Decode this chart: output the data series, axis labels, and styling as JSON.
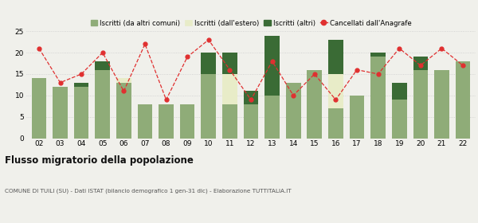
{
  "years": [
    "02",
    "03",
    "04",
    "05",
    "06",
    "07",
    "08",
    "09",
    "10",
    "11",
    "12",
    "13",
    "14",
    "15",
    "16",
    "17",
    "18",
    "19",
    "20",
    "21",
    "22"
  ],
  "iscritti_comuni": [
    14,
    12,
    12,
    16,
    13,
    8,
    8,
    8,
    15,
    8,
    8,
    10,
    13,
    16,
    7,
    10,
    19,
    9,
    16,
    16,
    18
  ],
  "iscritti_estero": [
    0,
    0,
    0,
    0,
    1,
    0,
    0,
    0,
    0,
    7,
    0,
    0,
    0,
    0,
    8,
    0,
    0,
    0,
    0,
    0,
    0
  ],
  "iscritti_altri": [
    0,
    0,
    1,
    2,
    0,
    0,
    0,
    0,
    5,
    5,
    3,
    14,
    0,
    0,
    8,
    0,
    1,
    4,
    3,
    0,
    0
  ],
  "cancellati": [
    21,
    13,
    15,
    20,
    11,
    22,
    9,
    19,
    23,
    16,
    9,
    18,
    10,
    15,
    9,
    16,
    15,
    21,
    17,
    21,
    17
  ],
  "color_comuni": "#8fac78",
  "color_estero": "#e8ecc8",
  "color_altri": "#3a6b35",
  "color_cancellati": "#e03030",
  "color_grid": "#cccccc",
  "ylim": [
    0,
    25
  ],
  "yticks": [
    0,
    5,
    10,
    15,
    20,
    25
  ],
  "title": "Flusso migratorio della popolazione",
  "subtitle": "COMUNE DI TUILI (SU) - Dati ISTAT (bilancio demografico 1 gen-31 dic) - Elaborazione TUTTITALIA.IT",
  "legend_labels": [
    "Iscritti (da altri comuni)",
    "Iscritti (dall'estero)",
    "Iscritti (altri)",
    "Cancellati dall'Anagrafe"
  ],
  "bg_color": "#f0f0eb"
}
